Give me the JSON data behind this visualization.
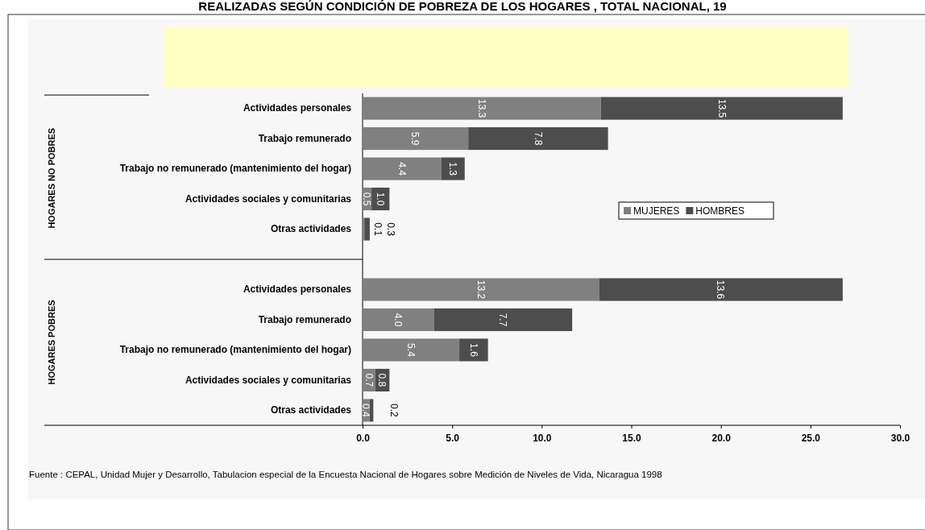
{
  "chart_data": {
    "type": "bar",
    "orientation": "horizontal",
    "stacked": true,
    "title": "REALIZADAS SEGÚN CONDICIÓN DE POBREZA DE LOS HOGARES , TOTAL NACIONAL, 19",
    "categories": [
      "Actividades personales",
      "Trabajo remunerado",
      "Trabajo no remunerado (mantenimiento del hogar)",
      "Actividades sociales y comunitarias",
      "Otras actividades",
      null,
      "Actividades personales",
      "Trabajo remunerado",
      "Trabajo no remunerado (mantenimiento del hogar)",
      "Actividades sociales y comunitarias",
      "Otras actividades"
    ],
    "series": [
      {
        "name": "MUJERES",
        "color": "#808080",
        "values": [
          13.3,
          5.9,
          4.4,
          0.5,
          0.1,
          null,
          13.2,
          4.0,
          5.4,
          0.7,
          0.4
        ],
        "value_labels": [
          "13.3",
          "5.9",
          "4.4",
          "0.5",
          "0.1",
          null,
          "13.2",
          "4.0",
          "5.4",
          "0.7",
          "0.4"
        ]
      },
      {
        "name": "HOMBRES",
        "color": "#4d4d4d",
        "values": [
          13.5,
          7.8,
          1.3,
          1.0,
          0.3,
          null,
          13.6,
          7.7,
          1.6,
          0.8,
          0.2
        ],
        "value_labels": [
          "13.5",
          "7.8",
          "1.3",
          "1.0",
          "0.3",
          null,
          "13.6",
          "7.7",
          "1.6",
          "0.8",
          "0.2"
        ]
      }
    ],
    "xlim": [
      0,
      30
    ],
    "xticks": [
      {
        "value": 0,
        "label": "0.0"
      },
      {
        "value": 5,
        "label": "5.0"
      },
      {
        "value": 10,
        "label": "10.0"
      },
      {
        "value": 15,
        "label": "15.0"
      },
      {
        "value": 20,
        "label": "20.0"
      },
      {
        "value": 25,
        "label": "25.0"
      },
      {
        "value": 30,
        "label": "30.0"
      }
    ],
    "legend": "right",
    "annotations": [
      "HOGARES NO POBRES",
      "HOGARES POBRES",
      "Fuente : CEPAL, Unidad Mujer y Desarrollo, Tabulacion especial de la Encuesta Nacional de Hogares sobre Medición de Niveles de Vida, Nicaragua 1998"
    ]
  }
}
